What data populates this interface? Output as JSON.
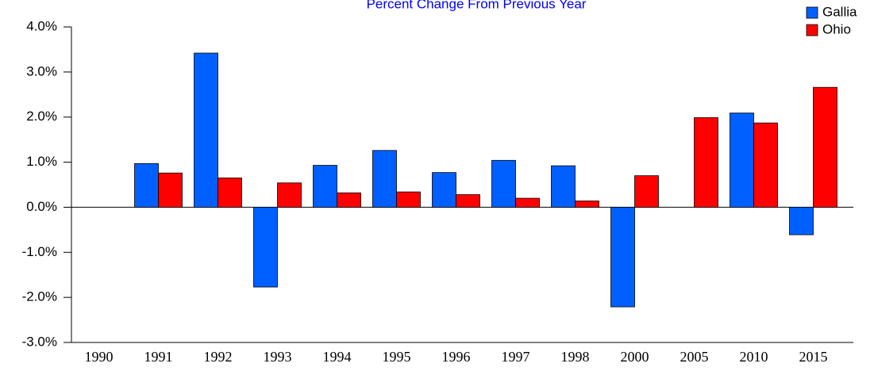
{
  "chart_data": {
    "type": "bar",
    "title": "Percent Change From Previous Year",
    "title_color": "#0000ff",
    "categories": [
      "1990",
      "1991",
      "1992",
      "1993",
      "1994",
      "1995",
      "1996",
      "1997",
      "1998",
      "2000",
      "2005",
      "2010",
      "2015"
    ],
    "series": [
      {
        "name": "Gallia",
        "color": "#0060ff",
        "values": [
          null,
          0.97,
          3.42,
          -1.77,
          0.93,
          1.26,
          0.77,
          1.04,
          0.92,
          -2.21,
          null,
          2.09,
          -0.61
        ]
      },
      {
        "name": "Ohio",
        "color": "#ff0000",
        "values": [
          null,
          0.76,
          0.65,
          0.54,
          0.32,
          0.34,
          0.28,
          0.2,
          0.14,
          0.7,
          1.99,
          1.87,
          2.66
        ]
      }
    ],
    "ylim": [
      -3,
      4
    ],
    "yticks": [
      {
        "value": -3,
        "label": "-3.0%"
      },
      {
        "value": -2,
        "label": "-2.0%"
      },
      {
        "value": -1,
        "label": "-1.0%"
      },
      {
        "value": 0,
        "label": "0.0%"
      },
      {
        "value": 1,
        "label": "1.0%"
      },
      {
        "value": 2,
        "label": "2.0%"
      },
      {
        "value": 3,
        "label": "3.0%"
      },
      {
        "value": 4,
        "label": "4.0%"
      }
    ],
    "legend": "top-right"
  }
}
